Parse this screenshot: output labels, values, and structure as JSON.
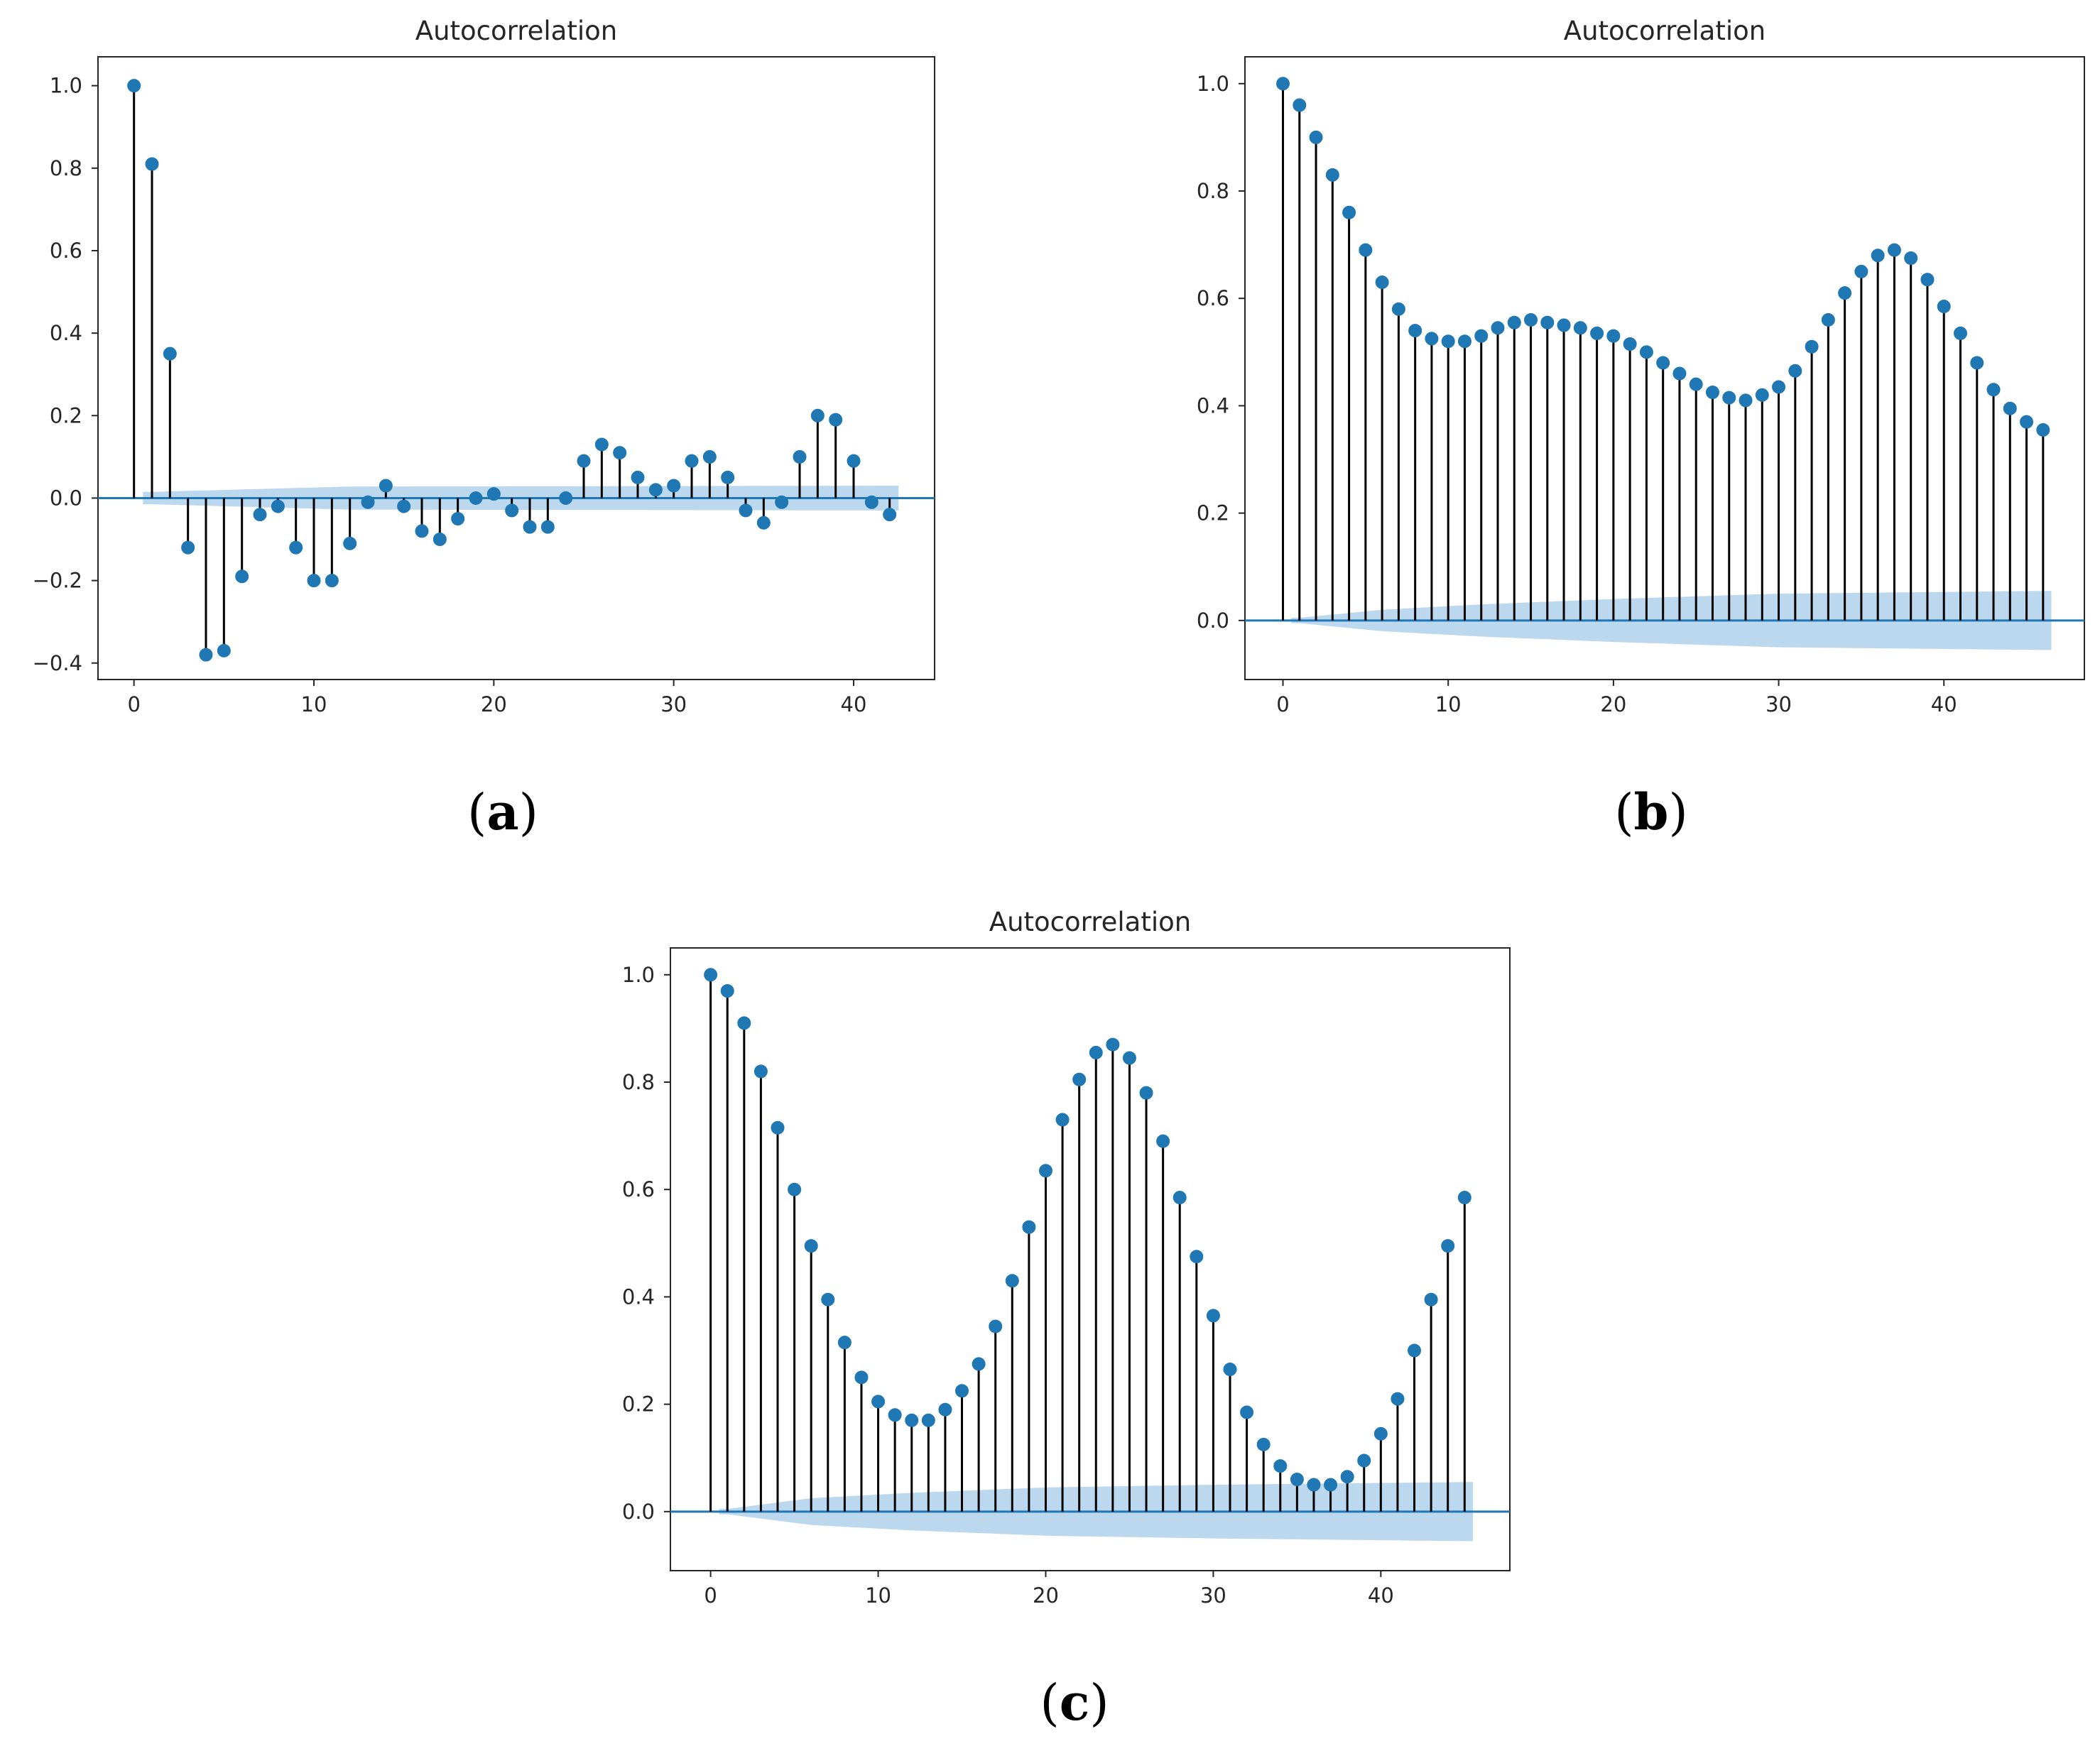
{
  "colors": {
    "marker": "#1f77b4",
    "stem": "#000000",
    "baseline": "#1f77b4",
    "confidence_band": "#a6cbe8",
    "axes": "#262626"
  },
  "chart_data": [
    {
      "panel": "a",
      "panel_label_open": "(",
      "panel_label_letter": "a",
      "panel_label_close": ")",
      "type": "stem",
      "title": "Autocorrelation",
      "xlabel": "",
      "ylabel": "",
      "xlim": [
        -2,
        44.5
      ],
      "ylim": [
        -0.44,
        1.07
      ],
      "xticks": [
        0,
        10,
        20,
        30,
        40
      ],
      "xtick_labels": [
        "0",
        "10",
        "20",
        "30",
        "40"
      ],
      "yticks": [
        -0.4,
        -0.2,
        0.0,
        0.2,
        0.4,
        0.6,
        0.8,
        1.0
      ],
      "ytick_labels": [
        "−0.4",
        "−0.2",
        "0.0",
        "0.2",
        "0.4",
        "0.6",
        "0.8",
        "1.0"
      ],
      "lags": [
        0,
        1,
        2,
        3,
        4,
        5,
        6,
        7,
        8,
        9,
        10,
        11,
        12,
        13,
        14,
        15,
        16,
        17,
        18,
        19,
        20,
        21,
        22,
        23,
        24,
        25,
        26,
        27,
        28,
        29,
        30,
        31,
        32,
        33,
        34,
        35,
        36,
        37,
        38,
        39,
        40,
        41,
        42
      ],
      "values": [
        1.0,
        0.81,
        0.35,
        -0.12,
        -0.38,
        -0.37,
        -0.19,
        -0.04,
        -0.02,
        -0.12,
        -0.2,
        -0.2,
        -0.11,
        -0.01,
        0.03,
        -0.02,
        -0.08,
        -0.1,
        -0.05,
        0.0,
        0.01,
        -0.03,
        -0.07,
        -0.07,
        0.0,
        0.09,
        0.13,
        0.11,
        0.05,
        0.02,
        0.03,
        0.09,
        0.1,
        0.05,
        -0.03,
        -0.06,
        -0.01,
        0.1,
        0.2,
        0.19,
        0.09,
        -0.01,
        -0.04
      ],
      "confidence_band": {
        "lags": [
          1,
          12,
          42
        ],
        "upper": [
          0.015,
          0.028,
          0.03
        ],
        "lower": [
          -0.015,
          -0.028,
          -0.03
        ]
      }
    },
    {
      "panel": "b",
      "panel_label_open": "(",
      "panel_label_letter": "b",
      "panel_label_close": ")",
      "type": "stem",
      "title": "Autocorrelation",
      "xlabel": "",
      "ylabel": "",
      "xlim": [
        -2.3,
        48.5
      ],
      "ylim": [
        -0.11,
        1.05
      ],
      "xticks": [
        0,
        10,
        20,
        30,
        40
      ],
      "xtick_labels": [
        "0",
        "10",
        "20",
        "30",
        "40"
      ],
      "yticks": [
        0.0,
        0.2,
        0.4,
        0.6,
        0.8,
        1.0
      ],
      "ytick_labels": [
        "0.0",
        "0.2",
        "0.4",
        "0.6",
        "0.8",
        "1.0"
      ],
      "lags": [
        0,
        1,
        2,
        3,
        4,
        5,
        6,
        7,
        8,
        9,
        10,
        11,
        12,
        13,
        14,
        15,
        16,
        17,
        18,
        19,
        20,
        21,
        22,
        23,
        24,
        25,
        26,
        27,
        28,
        29,
        30,
        31,
        32,
        33,
        34,
        35,
        36,
        37,
        38,
        39,
        40,
        41,
        42,
        43,
        44,
        45,
        46
      ],
      "values": [
        1.0,
        0.96,
        0.9,
        0.83,
        0.76,
        0.69,
        0.63,
        0.58,
        0.54,
        0.525,
        0.52,
        0.52,
        0.53,
        0.545,
        0.555,
        0.56,
        0.555,
        0.55,
        0.545,
        0.535,
        0.53,
        0.515,
        0.5,
        0.48,
        0.46,
        0.44,
        0.425,
        0.415,
        0.41,
        0.42,
        0.435,
        0.465,
        0.51,
        0.56,
        0.61,
        0.65,
        0.68,
        0.69,
        0.675,
        0.635,
        0.585,
        0.535,
        0.48,
        0.43,
        0.395,
        0.37,
        0.355
      ],
      "confidence_band": {
        "lags": [
          1,
          6,
          12,
          20,
          30,
          46
        ],
        "upper": [
          0.005,
          0.02,
          0.03,
          0.04,
          0.05,
          0.055
        ],
        "lower": [
          -0.005,
          -0.02,
          -0.03,
          -0.04,
          -0.05,
          -0.055
        ]
      }
    },
    {
      "panel": "c",
      "panel_label_open": "(",
      "panel_label_letter": "c",
      "panel_label_close": ")",
      "type": "stem",
      "title": "Autocorrelation",
      "xlabel": "",
      "ylabel": "",
      "xlim": [
        -2.4,
        47.7
      ],
      "ylim": [
        -0.11,
        1.05
      ],
      "xticks": [
        0,
        10,
        20,
        30,
        40
      ],
      "xtick_labels": [
        "0",
        "10",
        "20",
        "30",
        "40"
      ],
      "yticks": [
        0.0,
        0.2,
        0.4,
        0.6,
        0.8,
        1.0
      ],
      "ytick_labels": [
        "0.0",
        "0.2",
        "0.4",
        "0.6",
        "0.8",
        "1.0"
      ],
      "lags": [
        0,
        1,
        2,
        3,
        4,
        5,
        6,
        7,
        8,
        9,
        10,
        11,
        12,
        13,
        14,
        15,
        16,
        17,
        18,
        19,
        20,
        21,
        22,
        23,
        24,
        25,
        26,
        27,
        28,
        29,
        30,
        31,
        32,
        33,
        34,
        35,
        36,
        37,
        38,
        39,
        40,
        41,
        42,
        43,
        44,
        45
      ],
      "values": [
        1.0,
        0.97,
        0.91,
        0.82,
        0.715,
        0.6,
        0.495,
        0.395,
        0.315,
        0.25,
        0.205,
        0.18,
        0.17,
        0.17,
        0.19,
        0.225,
        0.275,
        0.345,
        0.43,
        0.53,
        0.635,
        0.73,
        0.805,
        0.855,
        0.87,
        0.845,
        0.78,
        0.69,
        0.585,
        0.475,
        0.365,
        0.265,
        0.185,
        0.125,
        0.085,
        0.06,
        0.05,
        0.05,
        0.065,
        0.095,
        0.145,
        0.21,
        0.3,
        0.395,
        0.495,
        0.585
      ],
      "confidence_band": {
        "lags": [
          1,
          6,
          12,
          20,
          30,
          45
        ],
        "upper": [
          0.005,
          0.025,
          0.035,
          0.045,
          0.05,
          0.055
        ],
        "lower": [
          -0.005,
          -0.025,
          -0.035,
          -0.045,
          -0.05,
          -0.055
        ]
      }
    }
  ]
}
